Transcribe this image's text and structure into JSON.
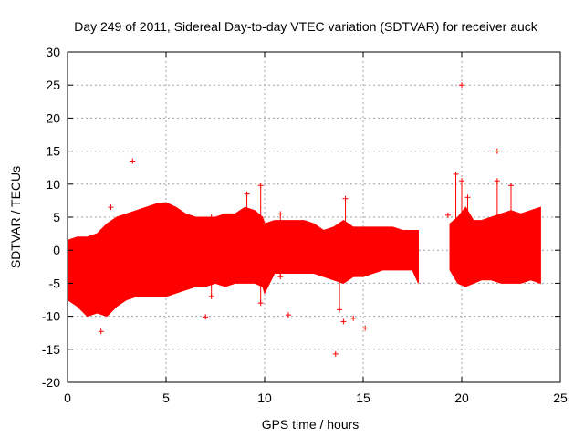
{
  "chart_data": {
    "type": "scatter",
    "title": "Day 249 of 2011, Sidereal Day-to-day VTEC variation (SDTVAR) for receiver auck",
    "xlabel": "GPS time / hours",
    "ylabel": "SDTVAR / TECUs",
    "xlim": [
      0,
      25
    ],
    "ylim": [
      -20,
      30
    ],
    "xticks": [
      0,
      5,
      10,
      15,
      20,
      25
    ],
    "yticks": [
      -20,
      -15,
      -10,
      -5,
      0,
      5,
      10,
      15,
      20,
      25,
      30
    ],
    "grid": true,
    "marker": "+",
    "color": "#ff0000",
    "band_envelope": [
      {
        "x": 0.0,
        "lo": -7.5,
        "hi": 1.5
      },
      {
        "x": 0.5,
        "lo": -8.5,
        "hi": 2.0
      },
      {
        "x": 1.0,
        "lo": -10.0,
        "hi": 2.0
      },
      {
        "x": 1.5,
        "lo": -9.5,
        "hi": 2.5
      },
      {
        "x": 2.0,
        "lo": -10.0,
        "hi": 4.0
      },
      {
        "x": 2.5,
        "lo": -8.5,
        "hi": 5.0
      },
      {
        "x": 3.0,
        "lo": -7.5,
        "hi": 5.5
      },
      {
        "x": 3.5,
        "lo": -7.0,
        "hi": 6.0
      },
      {
        "x": 4.0,
        "lo": -7.0,
        "hi": 6.5
      },
      {
        "x": 4.5,
        "lo": -7.0,
        "hi": 7.0
      },
      {
        "x": 5.0,
        "lo": -7.0,
        "hi": 7.2
      },
      {
        "x": 5.5,
        "lo": -6.5,
        "hi": 6.5
      },
      {
        "x": 6.0,
        "lo": -6.0,
        "hi": 5.5
      },
      {
        "x": 6.5,
        "lo": -5.5,
        "hi": 5.0
      },
      {
        "x": 7.0,
        "lo": -5.5,
        "hi": 5.0
      },
      {
        "x": 7.5,
        "lo": -5.0,
        "hi": 5.0
      },
      {
        "x": 8.0,
        "lo": -5.5,
        "hi": 5.5
      },
      {
        "x": 8.5,
        "lo": -5.0,
        "hi": 5.5
      },
      {
        "x": 9.0,
        "lo": -5.0,
        "hi": 6.5
      },
      {
        "x": 9.5,
        "lo": -5.0,
        "hi": 6.0
      },
      {
        "x": 9.9,
        "lo": -5.5,
        "hi": 5.0
      },
      {
        "x": 10.0,
        "lo": -6.5,
        "hi": 4.0
      },
      {
        "x": 10.5,
        "lo": -3.5,
        "hi": 4.5
      },
      {
        "x": 11.0,
        "lo": -3.5,
        "hi": 4.5
      },
      {
        "x": 11.5,
        "lo": -3.5,
        "hi": 4.5
      },
      {
        "x": 12.0,
        "lo": -3.5,
        "hi": 4.5
      },
      {
        "x": 12.5,
        "lo": -3.5,
        "hi": 4.0
      },
      {
        "x": 13.0,
        "lo": -4.0,
        "hi": 3.0
      },
      {
        "x": 13.5,
        "lo": -4.5,
        "hi": 3.5
      },
      {
        "x": 14.0,
        "lo": -5.0,
        "hi": 4.5
      },
      {
        "x": 14.5,
        "lo": -4.0,
        "hi": 3.5
      },
      {
        "x": 15.0,
        "lo": -4.0,
        "hi": 3.5
      },
      {
        "x": 15.5,
        "lo": -3.5,
        "hi": 3.5
      },
      {
        "x": 16.0,
        "lo": -3.0,
        "hi": 3.5
      },
      {
        "x": 16.5,
        "lo": -3.0,
        "hi": 3.5
      },
      {
        "x": 17.0,
        "lo": -3.0,
        "hi": 3.0
      },
      {
        "x": 17.5,
        "lo": -3.0,
        "hi": 3.0
      },
      {
        "x": 17.8,
        "lo": -5.0,
        "hi": 3.0
      }
    ],
    "band_envelope_2": [
      {
        "x": 19.4,
        "lo": -3.0,
        "hi": 4.0
      },
      {
        "x": 19.8,
        "lo": -5.0,
        "hi": 5.0
      },
      {
        "x": 20.2,
        "lo": -5.5,
        "hi": 6.5
      },
      {
        "x": 20.6,
        "lo": -5.0,
        "hi": 4.5
      },
      {
        "x": 21.0,
        "lo": -4.5,
        "hi": 4.5
      },
      {
        "x": 21.5,
        "lo": -4.5,
        "hi": 5.0
      },
      {
        "x": 22.0,
        "lo": -5.0,
        "hi": 5.5
      },
      {
        "x": 22.5,
        "lo": -5.0,
        "hi": 6.0
      },
      {
        "x": 23.0,
        "lo": -5.0,
        "hi": 5.5
      },
      {
        "x": 23.5,
        "lo": -4.5,
        "hi": 6.0
      },
      {
        "x": 24.0,
        "lo": -5.0,
        "hi": 6.5
      }
    ],
    "outliers": [
      {
        "x": 3.3,
        "y": 13.5
      },
      {
        "x": 1.7,
        "y": -12.3
      },
      {
        "x": 7.0,
        "y": -10.1
      },
      {
        "x": 11.2,
        "y": -9.8
      },
      {
        "x": 13.6,
        "y": -15.7
      },
      {
        "x": 14.0,
        "y": -10.8
      },
      {
        "x": 14.5,
        "y": -10.3
      },
      {
        "x": 15.1,
        "y": -11.8
      },
      {
        "x": 20.0,
        "y": 25.0
      },
      {
        "x": 21.8,
        "y": 15.0
      },
      {
        "x": 19.3,
        "y": 5.3
      },
      {
        "x": 2.2,
        "y": 6.5
      }
    ],
    "whiskers": [
      {
        "x": 9.1,
        "lo": 5.0,
        "hi": 8.5
      },
      {
        "x": 9.8,
        "lo": -8.0,
        "hi": 9.8
      },
      {
        "x": 14.1,
        "lo": 3.0,
        "hi": 7.8
      },
      {
        "x": 13.8,
        "lo": -9.0,
        "hi": 2.0
      },
      {
        "x": 19.7,
        "lo": 4.0,
        "hi": 11.5
      },
      {
        "x": 20.0,
        "lo": 5.0,
        "hi": 10.5
      },
      {
        "x": 21.8,
        "lo": 4.0,
        "hi": 10.5
      },
      {
        "x": 22.5,
        "lo": 5.0,
        "hi": 9.8
      },
      {
        "x": 20.3,
        "lo": 4.0,
        "hi": 8.0
      },
      {
        "x": 7.3,
        "lo": -7.0,
        "hi": 5.0
      },
      {
        "x": 10.8,
        "lo": -4.0,
        "hi": 5.5
      }
    ]
  }
}
